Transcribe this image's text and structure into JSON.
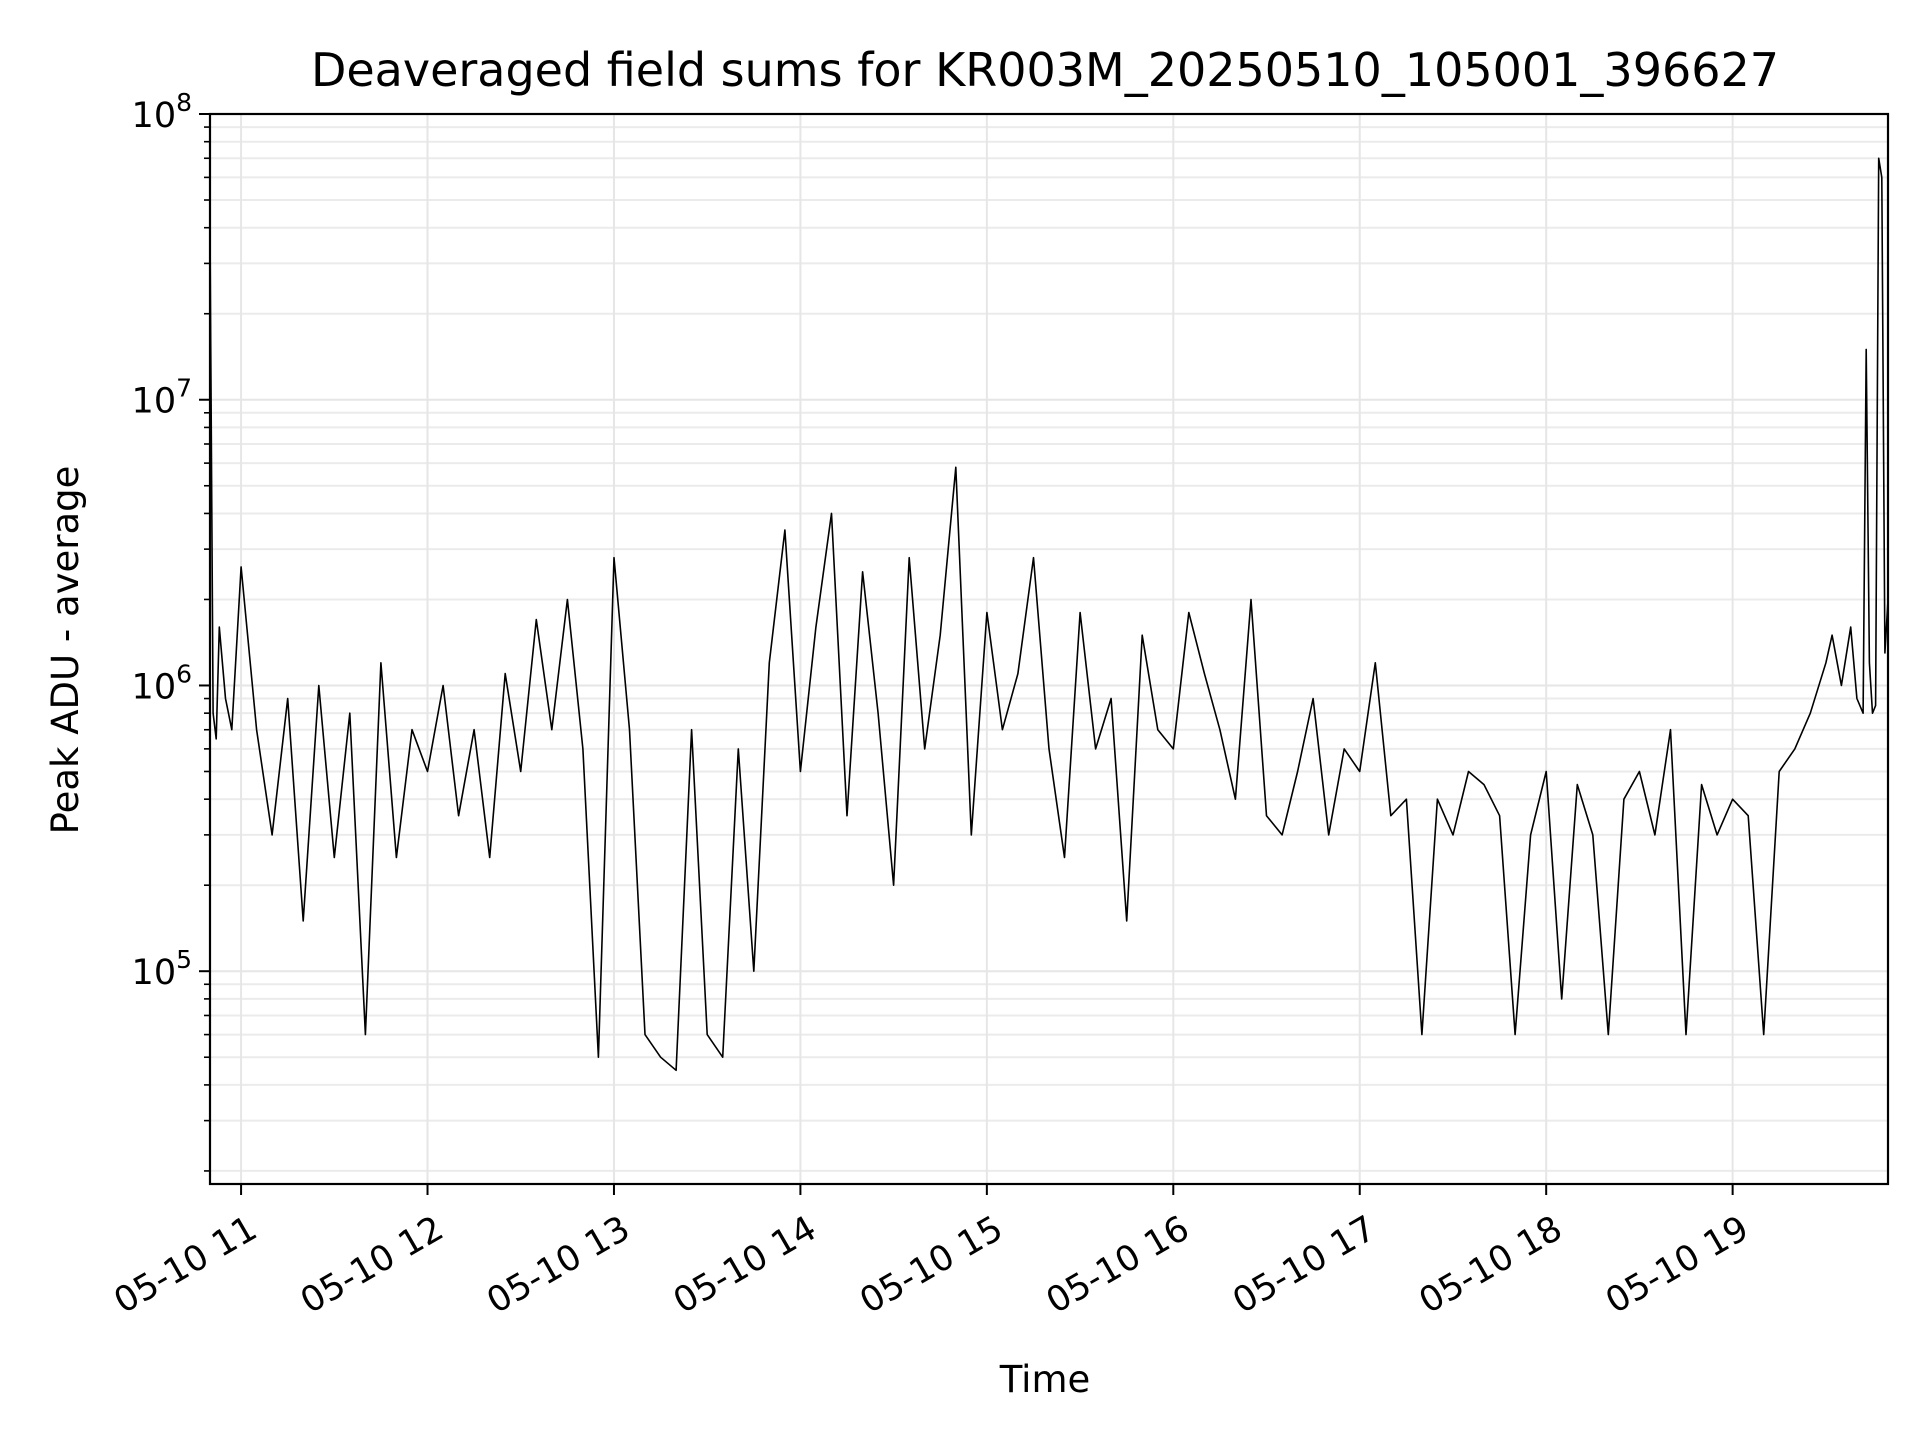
{
  "chart_data": {
    "type": "line",
    "title": "Deaveraged field sums for KR003M_20250510_105001_396627",
    "xlabel": "Time",
    "ylabel": "Peak ADU - average",
    "yscale": "log",
    "ylim": [
      18000,
      100000000
    ],
    "xlim": [
      "2025-05-10 10:50",
      "2025-05-10 19:50"
    ],
    "grid": "on",
    "legend": "none",
    "line_color": "#000000",
    "x_tick_labels": [
      "05-10 11",
      "05-10 12",
      "05-10 13",
      "05-10 14",
      "05-10 15",
      "05-10 16",
      "05-10 17",
      "05-10 18",
      "05-10 19"
    ],
    "x_tick_values": [
      "2025-05-10 11:00",
      "2025-05-10 12:00",
      "2025-05-10 13:00",
      "2025-05-10 14:00",
      "2025-05-10 15:00",
      "2025-05-10 16:00",
      "2025-05-10 17:00",
      "2025-05-10 18:00",
      "2025-05-10 19:00"
    ],
    "y_tick_values": [
      100000,
      1000000,
      10000000,
      100000000
    ],
    "y_tick_labels": [
      {
        "base": "10",
        "exp": "5"
      },
      {
        "base": "10",
        "exp": "6"
      },
      {
        "base": "10",
        "exp": "7"
      },
      {
        "base": "10",
        "exp": "8"
      }
    ],
    "series": [
      {
        "x": [
          "2025-05-10 10:50",
          "2025-05-10 10:51",
          "2025-05-10 10:52",
          "2025-05-10 10:53",
          "2025-05-10 10:55",
          "2025-05-10 10:57",
          "2025-05-10 11:00",
          "2025-05-10 11:05",
          "2025-05-10 11:10",
          "2025-05-10 11:15",
          "2025-05-10 11:20",
          "2025-05-10 11:25",
          "2025-05-10 11:30",
          "2025-05-10 11:35",
          "2025-05-10 11:40",
          "2025-05-10 11:45",
          "2025-05-10 11:50",
          "2025-05-10 11:55",
          "2025-05-10 12:00",
          "2025-05-10 12:05",
          "2025-05-10 12:10",
          "2025-05-10 12:15",
          "2025-05-10 12:20",
          "2025-05-10 12:25",
          "2025-05-10 12:30",
          "2025-05-10 12:35",
          "2025-05-10 12:40",
          "2025-05-10 12:45",
          "2025-05-10 12:50",
          "2025-05-10 12:55",
          "2025-05-10 13:00",
          "2025-05-10 13:05",
          "2025-05-10 13:10",
          "2025-05-10 13:15",
          "2025-05-10 13:20",
          "2025-05-10 13:25",
          "2025-05-10 13:30",
          "2025-05-10 13:35",
          "2025-05-10 13:40",
          "2025-05-10 13:45",
          "2025-05-10 13:50",
          "2025-05-10 13:55",
          "2025-05-10 14:00",
          "2025-05-10 14:05",
          "2025-05-10 14:10",
          "2025-05-10 14:15",
          "2025-05-10 14:20",
          "2025-05-10 14:25",
          "2025-05-10 14:30",
          "2025-05-10 14:35",
          "2025-05-10 14:40",
          "2025-05-10 14:45",
          "2025-05-10 14:50",
          "2025-05-10 14:55",
          "2025-05-10 15:00",
          "2025-05-10 15:05",
          "2025-05-10 15:10",
          "2025-05-10 15:15",
          "2025-05-10 15:20",
          "2025-05-10 15:25",
          "2025-05-10 15:30",
          "2025-05-10 15:35",
          "2025-05-10 15:40",
          "2025-05-10 15:45",
          "2025-05-10 15:50",
          "2025-05-10 15:55",
          "2025-05-10 16:00",
          "2025-05-10 16:05",
          "2025-05-10 16:10",
          "2025-05-10 16:15",
          "2025-05-10 16:20",
          "2025-05-10 16:25",
          "2025-05-10 16:30",
          "2025-05-10 16:35",
          "2025-05-10 16:40",
          "2025-05-10 16:45",
          "2025-05-10 16:50",
          "2025-05-10 16:55",
          "2025-05-10 17:00",
          "2025-05-10 17:05",
          "2025-05-10 17:10",
          "2025-05-10 17:15",
          "2025-05-10 17:20",
          "2025-05-10 17:25",
          "2025-05-10 17:30",
          "2025-05-10 17:35",
          "2025-05-10 17:40",
          "2025-05-10 17:45",
          "2025-05-10 17:50",
          "2025-05-10 17:55",
          "2025-05-10 18:00",
          "2025-05-10 18:05",
          "2025-05-10 18:10",
          "2025-05-10 18:15",
          "2025-05-10 18:20",
          "2025-05-10 18:25",
          "2025-05-10 18:30",
          "2025-05-10 18:35",
          "2025-05-10 18:40",
          "2025-05-10 18:45",
          "2025-05-10 18:50",
          "2025-05-10 18:55",
          "2025-05-10 19:00",
          "2025-05-10 19:05",
          "2025-05-10 19:10",
          "2025-05-10 19:15",
          "2025-05-10 19:20",
          "2025-05-10 19:25",
          "2025-05-10 19:30",
          "2025-05-10 19:32",
          "2025-05-10 19:35",
          "2025-05-10 19:38",
          "2025-05-10 19:40",
          "2025-05-10 19:42",
          "2025-05-10 19:43",
          "2025-05-10 19:44",
          "2025-05-10 19:45",
          "2025-05-10 19:46",
          "2025-05-10 19:47",
          "2025-05-10 19:48",
          "2025-05-10 19:49",
          "2025-05-10 19:50"
        ],
        "y": [
          40000000,
          800000,
          650000,
          1600000,
          900000,
          700000,
          2600000,
          700000,
          300000,
          900000,
          150000,
          1000000,
          250000,
          800000,
          60000,
          1200000,
          250000,
          700000,
          500000,
          1000000,
          350000,
          700000,
          250000,
          1100000,
          500000,
          1700000,
          700000,
          2000000,
          600000,
          50000,
          2800000,
          700000,
          60000,
          50000,
          45000,
          700000,
          60000,
          50000,
          600000,
          100000,
          1200000,
          3500000,
          500000,
          1600000,
          4000000,
          350000,
          2500000,
          800000,
          200000,
          2800000,
          600000,
          1500000,
          5800000,
          300000,
          1800000,
          700000,
          1100000,
          2800000,
          600000,
          250000,
          1800000,
          600000,
          900000,
          150000,
          1500000,
          700000,
          600000,
          1800000,
          1100000,
          700000,
          400000,
          2000000,
          350000,
          300000,
          500000,
          900000,
          300000,
          600000,
          500000,
          1200000,
          350000,
          400000,
          60000,
          400000,
          300000,
          500000,
          450000,
          350000,
          60000,
          300000,
          500000,
          80000,
          450000,
          300000,
          60000,
          400000,
          500000,
          300000,
          700000,
          60000,
          450000,
          300000,
          400000,
          350000,
          60000,
          500000,
          600000,
          800000,
          1200000,
          1500000,
          1000000,
          1600000,
          900000,
          800000,
          15000000,
          1200000,
          800000,
          850000,
          70000000,
          60000000,
          1300000,
          2000000
        ]
      }
    ]
  }
}
